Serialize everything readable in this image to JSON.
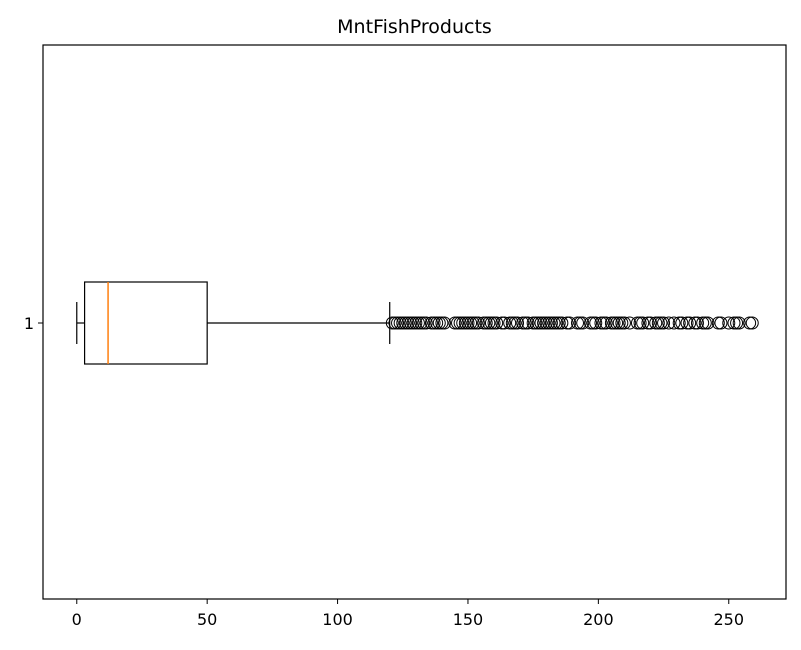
{
  "chart_data": {
    "type": "boxplot",
    "orientation": "horizontal",
    "title": "MntFishProducts",
    "xlabel": "",
    "ylabel": "",
    "xlim": [
      -12.95,
      271.95
    ],
    "x_ticks": [
      0,
      50,
      100,
      150,
      200,
      250
    ],
    "x_tick_labels": [
      "0",
      "50",
      "100",
      "150",
      "200",
      "250"
    ],
    "y_tick_labels": [
      "1"
    ],
    "grid": false,
    "series": [
      {
        "category": "1",
        "whisker_low": 0,
        "q1": 3,
        "median": 12,
        "q3": 50,
        "whisker_high": 120,
        "outliers": [
          121,
          122,
          123,
          124,
          125,
          126,
          127,
          128,
          129,
          130,
          131,
          132,
          133,
          134,
          136,
          137,
          138,
          139,
          140,
          141,
          145,
          146,
          147,
          148,
          149,
          150,
          151,
          152,
          153,
          154,
          156,
          157,
          158,
          159,
          160,
          161,
          163,
          164,
          166,
          167,
          168,
          169,
          171,
          172,
          173,
          175,
          176,
          177,
          178,
          179,
          180,
          181,
          182,
          183,
          184,
          185,
          186,
          188,
          189,
          192,
          193,
          194,
          197,
          198,
          199,
          201,
          202,
          203,
          205,
          206,
          207,
          208,
          209,
          210,
          212,
          215,
          216,
          217,
          219,
          220,
          222,
          223,
          224,
          225,
          227,
          229,
          231,
          232,
          234,
          235,
          237,
          238,
          240,
          241,
          242,
          246,
          247,
          250,
          252,
          253,
          254,
          258,
          259
        ]
      }
    ],
    "colors": {
      "box": "#000000",
      "median": "#ff7f0e",
      "outlier": "#000000"
    }
  }
}
